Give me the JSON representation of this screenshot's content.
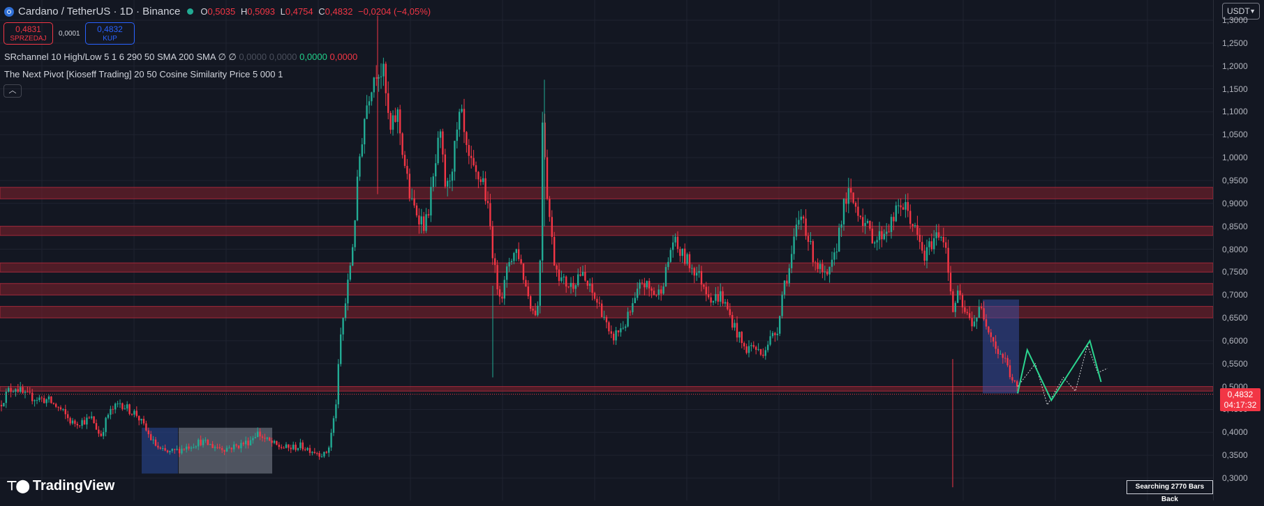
{
  "header": {
    "symbol_title": "Cardano / TetherUS · 1D · Binance",
    "open_label": "O",
    "open": "0,5035",
    "high_label": "H",
    "high": "0,5093",
    "low_label": "L",
    "low": "0,4754",
    "close_label": "C",
    "close": "0,4832",
    "change": "−0,0204 (−4,05%)",
    "market_status_color": "#22ab94"
  },
  "trade_buttons": {
    "sell_price": "0,4831",
    "sell_label": "SPRZEDAJ",
    "spread": "0,0001",
    "buy_price": "0,4832",
    "buy_label": "KUP"
  },
  "indicators": {
    "srchannel_label": "SRchannel 10 High/Low 5 1 6 290 50 SMA 200 SMA",
    "srchannel_symbols": "∅ ∅",
    "srchannel_dim_values": "0,0000 0,0000",
    "srchannel_green_value": "0,0000",
    "srchannel_red_value": "0,0000",
    "next_pivot_label": "The Next Pivot [Kioseff Trading] 20 50 Cosine Similarity Price 5 000 1",
    "collapse_icon": "chevron-up-icon"
  },
  "currency_selector": {
    "value": "USDT"
  },
  "price_axis": {
    "labels": [
      "1,3000",
      "1,2500",
      "1,2000",
      "1,1500",
      "1,1000",
      "1,0500",
      "1,0000",
      "0,9500",
      "0,9000",
      "0,8500",
      "0,8000",
      "0,7500",
      "0,7000",
      "0,6500",
      "0,6000",
      "0,5500",
      "0,5000",
      "0,4500",
      "0,4000",
      "0,3500",
      "0,3000"
    ],
    "current_price": "0,4832",
    "countdown": "04:17:32"
  },
  "branding": {
    "name": "TradingView"
  },
  "status_box": {
    "text": "Searching 2770 Bars Back"
  },
  "colors": {
    "background": "#131722",
    "up": "#22ab94",
    "down": "#f23645",
    "zone_fill": "#7a1f2b",
    "pivot_line": "#2bd58f"
  },
  "chart_data": {
    "type": "candlestick",
    "symbol": "Cardano / TetherUS",
    "timeframe": "1D",
    "ylim": [
      0.28,
      1.31
    ],
    "yticks": [
      1.3,
      1.25,
      1.2,
      1.15,
      1.1,
      1.05,
      1.0,
      0.95,
      0.9,
      0.85,
      0.8,
      0.75,
      0.7,
      0.65,
      0.6,
      0.55,
      0.5,
      0.45,
      0.4,
      0.35,
      0.3
    ],
    "approx_close_path": [
      [
        0,
        0.46
      ],
      [
        10,
        0.49
      ],
      [
        20,
        0.5
      ],
      [
        30,
        0.48
      ],
      [
        45,
        0.475
      ],
      [
        60,
        0.47
      ],
      [
        75,
        0.45
      ],
      [
        90,
        0.42
      ],
      [
        105,
        0.425
      ],
      [
        115,
        0.43
      ],
      [
        125,
        0.39
      ],
      [
        135,
        0.44
      ],
      [
        150,
        0.465
      ],
      [
        160,
        0.45
      ],
      [
        170,
        0.44
      ],
      [
        180,
        0.41
      ],
      [
        190,
        0.38
      ],
      [
        200,
        0.36
      ],
      [
        210,
        0.355
      ],
      [
        220,
        0.36
      ],
      [
        235,
        0.37
      ],
      [
        250,
        0.38
      ],
      [
        265,
        0.37
      ],
      [
        280,
        0.365
      ],
      [
        295,
        0.37
      ],
      [
        310,
        0.38
      ],
      [
        320,
        0.4
      ],
      [
        330,
        0.385
      ],
      [
        345,
        0.37
      ],
      [
        360,
        0.365
      ],
      [
        375,
        0.37
      ],
      [
        390,
        0.36
      ],
      [
        405,
        0.35
      ],
      [
        410,
        0.37
      ],
      [
        418,
        0.45
      ],
      [
        425,
        0.62
      ],
      [
        432,
        0.7
      ],
      [
        440,
        0.82
      ],
      [
        448,
        1.0
      ],
      [
        455,
        1.1
      ],
      [
        462,
        1.16
      ],
      [
        470,
        1.2
      ],
      [
        478,
        1.18
      ],
      [
        486,
        1.05
      ],
      [
        495,
        1.1
      ],
      [
        503,
        1.0
      ],
      [
        512,
        0.9
      ],
      [
        520,
        0.88
      ],
      [
        530,
        0.85
      ],
      [
        540,
        0.95
      ],
      [
        548,
        1.05
      ],
      [
        556,
        0.92
      ],
      [
        565,
        1.0
      ],
      [
        574,
        1.1
      ],
      [
        582,
        1.0
      ],
      [
        592,
        0.96
      ],
      [
        602,
        0.95
      ],
      [
        610,
        0.86
      ],
      [
        618,
        0.73
      ],
      [
        626,
        0.7
      ],
      [
        635,
        0.78
      ],
      [
        645,
        0.8
      ],
      [
        655,
        0.72
      ],
      [
        665,
        0.66
      ],
      [
        672,
        0.68
      ],
      [
        676,
        1.1
      ],
      [
        682,
        0.92
      ],
      [
        690,
        0.78
      ],
      [
        700,
        0.73
      ],
      [
        712,
        0.72
      ],
      [
        722,
        0.75
      ],
      [
        732,
        0.72
      ],
      [
        742,
        0.69
      ],
      [
        752,
        0.66
      ],
      [
        760,
        0.6
      ],
      [
        770,
        0.62
      ],
      [
        780,
        0.64
      ],
      [
        790,
        0.68
      ],
      [
        800,
        0.73
      ],
      [
        810,
        0.71
      ],
      [
        820,
        0.7
      ],
      [
        830,
        0.75
      ],
      [
        838,
        0.82
      ],
      [
        848,
        0.79
      ],
      [
        858,
        0.77
      ],
      [
        868,
        0.75
      ],
      [
        878,
        0.72
      ],
      [
        888,
        0.69
      ],
      [
        898,
        0.7
      ],
      [
        908,
        0.66
      ],
      [
        918,
        0.62
      ],
      [
        928,
        0.58
      ],
      [
        938,
        0.59
      ],
      [
        948,
        0.57
      ],
      [
        958,
        0.6
      ],
      [
        968,
        0.62
      ],
      [
        976,
        0.72
      ],
      [
        984,
        0.76
      ],
      [
        992,
        0.84
      ],
      [
        1000,
        0.88
      ],
      [
        1010,
        0.8
      ],
      [
        1020,
        0.76
      ],
      [
        1030,
        0.73
      ],
      [
        1040,
        0.78
      ],
      [
        1048,
        0.87
      ],
      [
        1056,
        0.92
      ],
      [
        1064,
        0.9
      ],
      [
        1072,
        0.88
      ],
      [
        1082,
        0.84
      ],
      [
        1092,
        0.82
      ],
      [
        1102,
        0.84
      ],
      [
        1112,
        0.86
      ],
      [
        1122,
        0.9
      ],
      [
        1132,
        0.88
      ],
      [
        1142,
        0.83
      ],
      [
        1152,
        0.78
      ],
      [
        1162,
        0.82
      ],
      [
        1172,
        0.84
      ],
      [
        1180,
        0.8
      ],
      [
        1186,
        0.66
      ],
      [
        1194,
        0.7
      ],
      [
        1202,
        0.66
      ],
      [
        1212,
        0.64
      ],
      [
        1222,
        0.67
      ],
      [
        1232,
        0.63
      ],
      [
        1242,
        0.58
      ],
      [
        1252,
        0.56
      ],
      [
        1260,
        0.52
      ],
      [
        1268,
        0.49
      ]
    ],
    "sr_zones": [
      [
        0.91,
        0.935
      ],
      [
        0.83,
        0.85
      ],
      [
        0.75,
        0.77
      ],
      [
        0.7,
        0.725
      ],
      [
        0.65,
        0.675
      ],
      [
        0.49,
        0.5
      ]
    ],
    "pivot_projection": [
      [
        1268,
        0.485
      ],
      [
        1280,
        0.58
      ],
      [
        1310,
        0.47
      ],
      [
        1358,
        0.6
      ],
      [
        1372,
        0.51
      ]
    ],
    "similar_pattern": [
      [
        1268,
        0.5
      ],
      [
        1290,
        0.55
      ],
      [
        1305,
        0.46
      ],
      [
        1325,
        0.52
      ],
      [
        1340,
        0.49
      ],
      [
        1355,
        0.59
      ],
      [
        1368,
        0.53
      ],
      [
        1380,
        0.54
      ]
    ]
  }
}
